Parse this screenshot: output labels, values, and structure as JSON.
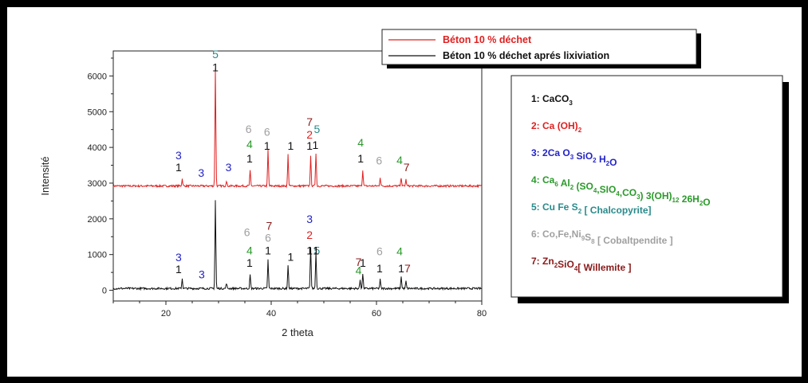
{
  "chart_data": {
    "type": "line",
    "xlabel": "2 theta",
    "ylabel": "Intensité",
    "xlim": [
      10,
      80
    ],
    "ylim": [
      -300,
      6700
    ],
    "xticks": [
      20,
      40,
      60,
      80
    ],
    "yticks": [
      0,
      1000,
      2000,
      3000,
      4000,
      5000,
      6000
    ],
    "series": [
      {
        "name": "Béton 10 % déchet",
        "color": "#e02020",
        "baseline": 2920,
        "peaks": [
          [
            23.1,
            200
          ],
          [
            29.4,
            3300
          ],
          [
            31.5,
            150
          ],
          [
            36.0,
            420
          ],
          [
            39.4,
            1020
          ],
          [
            43.2,
            880
          ],
          [
            47.5,
            820
          ],
          [
            48.5,
            930
          ],
          [
            57.4,
            450
          ],
          [
            60.7,
            250
          ],
          [
            64.7,
            240
          ],
          [
            65.6,
            180
          ]
        ]
      },
      {
        "name": "Béton 10 % déchet aprés lixiviation",
        "color": "#111111",
        "baseline": 50,
        "peaks": [
          [
            23.1,
            280
          ],
          [
            29.4,
            2470
          ],
          [
            31.5,
            150
          ],
          [
            36.0,
            380
          ],
          [
            39.4,
            800
          ],
          [
            43.2,
            660
          ],
          [
            47.5,
            1180
          ],
          [
            48.5,
            1020
          ],
          [
            56.9,
            250
          ],
          [
            57.4,
            420
          ],
          [
            60.7,
            250
          ],
          [
            64.7,
            340
          ],
          [
            65.6,
            200
          ]
        ]
      }
    ],
    "annotations": [
      {
        "text": "5",
        "x": 29.4,
        "y": 6500,
        "color": "#2a8a8a"
      },
      {
        "text": "1",
        "x": 29.4,
        "y": 6130,
        "color": "#111111"
      },
      {
        "text": "3",
        "x": 22.4,
        "y": 3670,
        "color": "#2323c8"
      },
      {
        "text": "1",
        "x": 22.4,
        "y": 3330,
        "color": "#111111"
      },
      {
        "text": "3",
        "x": 26.7,
        "y": 3180,
        "color": "#2323c8"
      },
      {
        "text": "3",
        "x": 31.9,
        "y": 3330,
        "color": "#2323c8"
      },
      {
        "text": "6",
        "x": 35.7,
        "y": 4400,
        "color": "#a0a0a0"
      },
      {
        "text": "4",
        "x": 35.9,
        "y": 3980,
        "color": "#2a9a2a"
      },
      {
        "text": "1",
        "x": 35.9,
        "y": 3580,
        "color": "#111111"
      },
      {
        "text": "6",
        "x": 39.2,
        "y": 4330,
        "color": "#a0a0a0"
      },
      {
        "text": "1",
        "x": 39.2,
        "y": 3940,
        "color": "#111111"
      },
      {
        "text": "1",
        "x": 43.7,
        "y": 3940,
        "color": "#111111"
      },
      {
        "text": "7",
        "x": 47.3,
        "y": 4610,
        "color": "#8b1a1a"
      },
      {
        "text": "2",
        "x": 47.3,
        "y": 4250,
        "color": "#e02020"
      },
      {
        "text": "1",
        "x": 47.3,
        "y": 3940,
        "color": "#111111"
      },
      {
        "text": "5",
        "x": 48.7,
        "y": 4400,
        "color": "#2a8a8a"
      },
      {
        "text": "1",
        "x": 48.4,
        "y": 3960,
        "color": "#111111"
      },
      {
        "text": "4",
        "x": 57.0,
        "y": 4030,
        "color": "#2a9a2a"
      },
      {
        "text": "1",
        "x": 57.0,
        "y": 3580,
        "color": "#111111"
      },
      {
        "text": "6",
        "x": 60.5,
        "y": 3520,
        "color": "#a0a0a0"
      },
      {
        "text": "4",
        "x": 64.4,
        "y": 3530,
        "color": "#2a9a2a"
      },
      {
        "text": "7",
        "x": 65.7,
        "y": 3330,
        "color": "#8b1a1a"
      },
      {
        "text": "3",
        "x": 22.4,
        "y": 820,
        "color": "#2323c8"
      },
      {
        "text": "1",
        "x": 22.4,
        "y": 480,
        "color": "#111111"
      },
      {
        "text": "3",
        "x": 26.8,
        "y": 330,
        "color": "#2323c8"
      },
      {
        "text": "6",
        "x": 35.4,
        "y": 1520,
        "color": "#a0a0a0"
      },
      {
        "text": "4",
        "x": 35.9,
        "y": 1000,
        "color": "#2a9a2a"
      },
      {
        "text": "1",
        "x": 35.9,
        "y": 660,
        "color": "#111111"
      },
      {
        "text": "7",
        "x": 39.6,
        "y": 1700,
        "color": "#8b1a1a"
      },
      {
        "text": "6",
        "x": 39.4,
        "y": 1360,
        "color": "#a0a0a0"
      },
      {
        "text": "1",
        "x": 39.4,
        "y": 1000,
        "color": "#111111"
      },
      {
        "text": "1",
        "x": 43.7,
        "y": 830,
        "color": "#111111"
      },
      {
        "text": "3",
        "x": 47.3,
        "y": 1880,
        "color": "#2323c8"
      },
      {
        "text": "2",
        "x": 47.3,
        "y": 1440,
        "color": "#e02020"
      },
      {
        "text": "1",
        "x": 47.3,
        "y": 1000,
        "color": "#111111"
      },
      {
        "text": "5",
        "x": 48.7,
        "y": 1000,
        "color": "#2a8a8a"
      },
      {
        "text": "1",
        "x": 48.5,
        "y": 1000,
        "color": "#111111"
      },
      {
        "text": "7",
        "x": 56.6,
        "y": 680,
        "color": "#8b1a1a"
      },
      {
        "text": "1",
        "x": 57.4,
        "y": 660,
        "color": "#111111"
      },
      {
        "text": "4",
        "x": 56.6,
        "y": 450,
        "color": "#2a9a2a"
      },
      {
        "text": "6",
        "x": 60.6,
        "y": 980,
        "color": "#a0a0a0"
      },
      {
        "text": "1",
        "x": 60.6,
        "y": 500,
        "color": "#111111"
      },
      {
        "text": "4",
        "x": 64.4,
        "y": 980,
        "color": "#2a9a2a"
      },
      {
        "text": "1",
        "x": 64.7,
        "y": 500,
        "color": "#111111"
      },
      {
        "text": "7",
        "x": 65.9,
        "y": 500,
        "color": "#8b1a1a"
      }
    ]
  },
  "legend": [
    {
      "label": "Béton 10 % déchet",
      "color": "#e02020"
    },
    {
      "label": "Béton 10 % déchet aprés lixiviation",
      "color": "#111111"
    }
  ],
  "phases": [
    {
      "num": "1:",
      "formula": [
        [
          "CaCO",
          ""
        ],
        [
          "3",
          "sub"
        ]
      ],
      "color": "#111111"
    },
    {
      "num": "2:",
      "formula": [
        [
          "Ca (OH)",
          ""
        ],
        [
          "2",
          "sub"
        ]
      ],
      "color": "#e02020"
    },
    {
      "num": "3:",
      "formula": [
        [
          "2Ca O",
          ""
        ],
        [
          "3",
          "sub"
        ],
        [
          " SiO",
          ""
        ],
        [
          "2",
          "sub"
        ],
        [
          " H",
          ""
        ],
        [
          "2",
          "sub"
        ],
        [
          "O",
          ""
        ]
      ],
      "color": "#2323c8"
    },
    {
      "num": "4:",
      "formula": [
        [
          "Ca",
          ""
        ],
        [
          "6",
          "sub"
        ],
        [
          " Al",
          ""
        ],
        [
          "2",
          "sub"
        ],
        [
          " (SO",
          ""
        ],
        [
          "4",
          "sub"
        ],
        [
          ",SIO",
          ""
        ],
        [
          "4",
          "sub"
        ],
        [
          ",CO",
          ""
        ],
        [
          "3",
          "sub"
        ],
        [
          ") 3(OH)",
          ""
        ],
        [
          "12",
          "sub"
        ],
        [
          " 26H",
          ""
        ],
        [
          "2",
          "sub"
        ],
        [
          "O",
          ""
        ]
      ],
      "color": "#2a9a2a"
    },
    {
      "num": "5:",
      "formula": [
        [
          "Cu Fe S",
          ""
        ],
        [
          "2",
          "sub"
        ],
        [
          " [ Chalcopyrite]",
          ""
        ]
      ],
      "color": "#2a8a8a"
    },
    {
      "num": "6:",
      "formula": [
        [
          "Co,Fe,Ni",
          ""
        ],
        [
          "9",
          "sub"
        ],
        [
          "S",
          ""
        ],
        [
          "8",
          "sub"
        ],
        [
          " [ Cobaltpendite ]",
          ""
        ]
      ],
      "color": "#a0a0a0"
    },
    {
      "num": "7:",
      "formula": [
        [
          "Zn",
          ""
        ],
        [
          "2",
          "sub"
        ],
        [
          "SiO",
          ""
        ],
        [
          "4",
          "sub"
        ],
        [
          "[ Willemite ]",
          ""
        ]
      ],
      "color": "#8b1a1a"
    }
  ]
}
